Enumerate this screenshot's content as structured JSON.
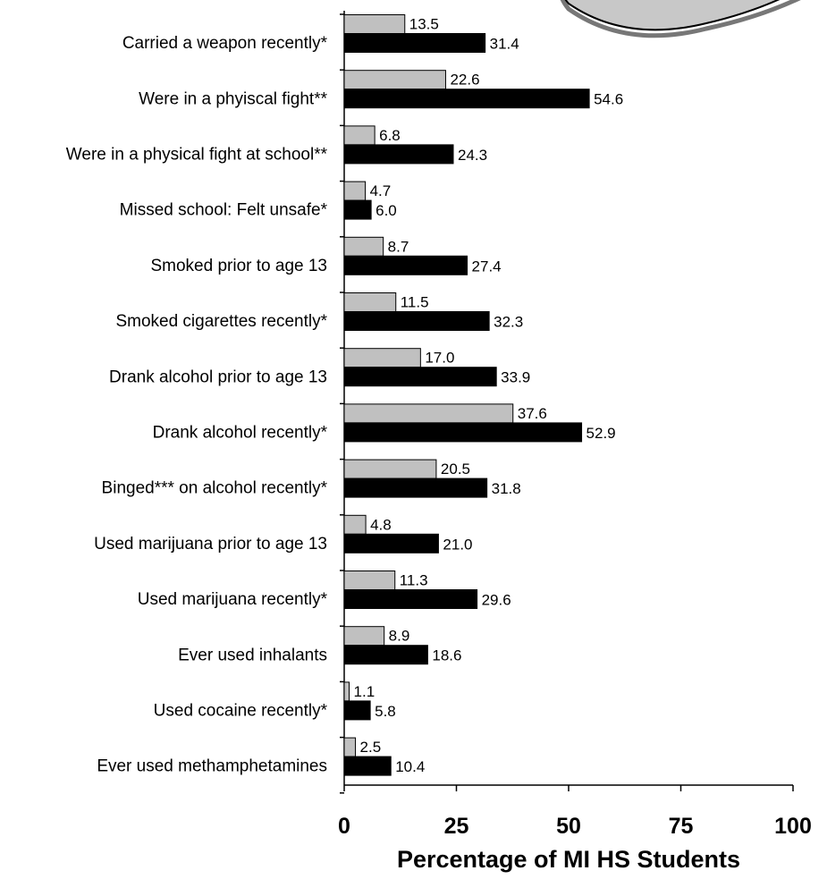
{
  "chart_data": {
    "type": "bar",
    "orientation": "horizontal",
    "categories": [
      "Carried a weapon recently*",
      "Were in a phyiscal fight**",
      "Were in a physical fight at school**",
      "Missed school: Felt unsafe*",
      "Smoked prior to age 13",
      "Smoked cigarettes recently*",
      "Drank alcohol prior to age 13",
      "Drank alcohol recently*",
      "Binged*** on alcohol recently*",
      "Used marijuana prior to age 13",
      "Used marijuana recently*",
      "Ever used inhalants",
      "Used cocaine recently*",
      "Ever used methamphetamines"
    ],
    "series": [
      {
        "color": "#c0c0c0",
        "values": [
          13.5,
          22.6,
          6.8,
          4.7,
          8.7,
          11.5,
          17.0,
          37.6,
          20.5,
          4.8,
          11.3,
          8.9,
          1.1,
          2.5
        ],
        "labels": [
          "13.5",
          "22.6",
          "6.8",
          "4.7",
          "8.7",
          "11.5",
          "17.0",
          "37.6",
          "20.5",
          "4.8",
          "11.3",
          "8.9",
          "1.1",
          "2.5"
        ]
      },
      {
        "color": "#000000",
        "values": [
          31.4,
          54.6,
          24.3,
          6.0,
          27.4,
          32.3,
          33.9,
          52.9,
          31.8,
          21.0,
          29.6,
          18.6,
          5.8,
          10.4
        ],
        "labels": [
          "31.4",
          "54.6",
          "24.3",
          "6.0",
          "27.4",
          "32.3",
          "33.9",
          "52.9",
          "31.8",
          "21.0",
          "29.6",
          "18.6",
          "5.8",
          "10.4"
        ]
      }
    ],
    "xlim": [
      0,
      100
    ],
    "xticks": [
      "0",
      "25",
      "50",
      "75",
      "100"
    ],
    "xlabel": "Percentage of MI HS Students",
    "title": "",
    "grid": false,
    "legend": "partially visible at top-right"
  }
}
